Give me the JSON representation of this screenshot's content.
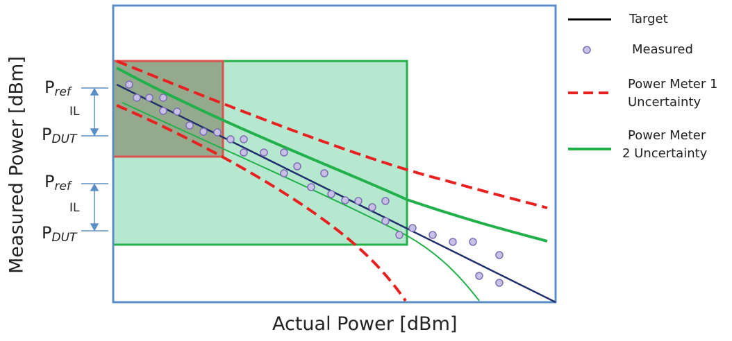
{
  "diagram": {
    "x_axis_label": "Actual Power [dBm]",
    "y_axis_label": "Measured Power [dBm]",
    "annotations": {
      "upper": {
        "p_letter": "P",
        "ref_sub": "ref",
        "il": "IL",
        "dut_sub": "DUT"
      },
      "lower": {
        "p_letter": "P",
        "ref_sub": "ref",
        "il": "IL",
        "dut_sub": "DUT"
      }
    },
    "legend": {
      "target": "Target",
      "measured": "Measured",
      "pm1_line1": "Power Meter 1",
      "pm1_line2": "Uncertainty",
      "pm2_line1": "Power Meter",
      "pm2_line2": "2 Uncertainty"
    },
    "colors": {
      "frame": "#5b8ec4",
      "target": "#1f2f6b",
      "measured_fill": "#c9c0e8",
      "measured_stroke": "#7b6fb0",
      "pm1": "#e8201f",
      "pm2": "#22b04a",
      "pm2_box_fill": "#b6e8cf",
      "pm1_box_fill": "#7a7458",
      "bracket": "#5b8ec4"
    }
  }
}
